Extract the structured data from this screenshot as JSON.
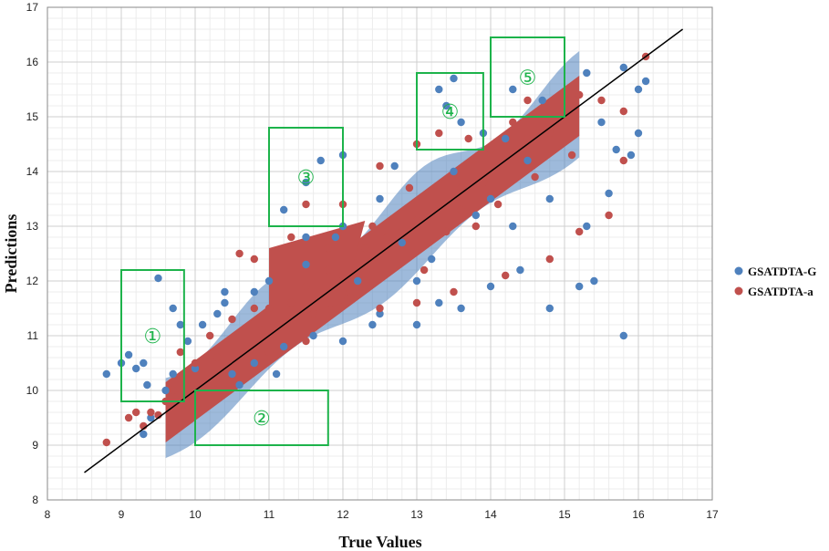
{
  "chart_data": {
    "type": "scatter",
    "title": "",
    "xlabel": "True Values",
    "ylabel": "Predictions",
    "xlim": [
      8,
      17
    ],
    "ylim": [
      8,
      17
    ],
    "xticks": [
      "8",
      "9",
      "10",
      "11",
      "12",
      "13",
      "14",
      "15",
      "16",
      "17"
    ],
    "yticks": [
      "8",
      "9",
      "10",
      "11",
      "12",
      "13",
      "14",
      "15",
      "16",
      "17"
    ],
    "grid": true,
    "legend_position": "right",
    "reference_line": {
      "x": [
        8.5,
        16.6
      ],
      "y": [
        8.5,
        16.6
      ],
      "color": "#000000"
    },
    "series": [
      {
        "name": "GSATDTA-G",
        "color": "#4f81bd",
        "points": [
          [
            8.8,
            10.3
          ],
          [
            9.0,
            10.5
          ],
          [
            9.1,
            10.65
          ],
          [
            9.2,
            10.4
          ],
          [
            9.3,
            10.5
          ],
          [
            9.35,
            10.1
          ],
          [
            9.5,
            12.05
          ],
          [
            9.7,
            11.5
          ],
          [
            9.8,
            11.2
          ],
          [
            9.9,
            10.9
          ],
          [
            9.3,
            9.2
          ],
          [
            9.4,
            9.5
          ],
          [
            9.6,
            10.0
          ],
          [
            9.7,
            10.3
          ],
          [
            10.0,
            10.4
          ],
          [
            10.1,
            11.2
          ],
          [
            10.3,
            11.4
          ],
          [
            10.4,
            11.8
          ],
          [
            10.4,
            11.6
          ],
          [
            10.8,
            11.8
          ],
          [
            10.5,
            10.3
          ],
          [
            10.8,
            10.5
          ],
          [
            11.1,
            10.3
          ],
          [
            11.2,
            10.8
          ],
          [
            11.6,
            11.0
          ],
          [
            12.0,
            10.9
          ],
          [
            12.4,
            11.2
          ],
          [
            12.5,
            11.4
          ],
          [
            13.0,
            11.2
          ],
          [
            13.3,
            11.6
          ],
          [
            13.6,
            11.5
          ],
          [
            14.0,
            11.9
          ],
          [
            14.4,
            12.2
          ],
          [
            14.8,
            11.5
          ],
          [
            15.2,
            11.9
          ],
          [
            15.4,
            12.0
          ],
          [
            15.8,
            11.0
          ],
          [
            11.7,
            14.2
          ],
          [
            12.0,
            14.3
          ],
          [
            11.5,
            13.8
          ],
          [
            11.2,
            13.3
          ],
          [
            11.5,
            12.8
          ],
          [
            13.3,
            15.5
          ],
          [
            13.5,
            15.7
          ],
          [
            13.4,
            15.2
          ],
          [
            13.6,
            14.9
          ],
          [
            13.9,
            14.7
          ],
          [
            14.3,
            15.5
          ],
          [
            14.7,
            15.3
          ],
          [
            15.0,
            15.1
          ],
          [
            15.3,
            15.8
          ],
          [
            15.8,
            15.9
          ],
          [
            16.0,
            15.5
          ],
          [
            16.1,
            15.65
          ],
          [
            15.5,
            14.9
          ],
          [
            15.7,
            14.4
          ],
          [
            15.9,
            14.3
          ],
          [
            16.0,
            14.7
          ],
          [
            15.3,
            13.0
          ],
          [
            15.6,
            13.6
          ],
          [
            14.8,
            13.5
          ],
          [
            14.3,
            13.0
          ],
          [
            12.0,
            13.0
          ],
          [
            12.5,
            13.5
          ],
          [
            13.0,
            12.0
          ],
          [
            13.5,
            14.0
          ],
          [
            14.0,
            13.5
          ],
          [
            11.0,
            12.0
          ],
          [
            11.5,
            12.3
          ],
          [
            12.2,
            12.0
          ],
          [
            12.8,
            12.7
          ],
          [
            13.8,
            13.2
          ],
          [
            14.5,
            14.2
          ],
          [
            10.6,
            10.1
          ],
          [
            11.9,
            12.8
          ],
          [
            12.7,
            14.1
          ],
          [
            13.2,
            12.4
          ],
          [
            14.2,
            14.6
          ]
        ]
      },
      {
        "name": "GSATDTA-a",
        "color": "#c0504d",
        "points": [
          [
            8.8,
            9.05
          ],
          [
            9.1,
            9.5
          ],
          [
            9.2,
            9.6
          ],
          [
            9.4,
            9.6
          ],
          [
            9.5,
            9.55
          ],
          [
            9.3,
            9.35
          ],
          [
            9.6,
            9.8
          ],
          [
            9.7,
            10.0
          ],
          [
            9.8,
            10.7
          ],
          [
            9.9,
            10.2
          ],
          [
            10.0,
            10.5
          ],
          [
            10.2,
            11.0
          ],
          [
            10.5,
            11.3
          ],
          [
            10.8,
            11.5
          ],
          [
            11.0,
            11.5
          ],
          [
            11.3,
            11.6
          ],
          [
            11.5,
            11.9
          ],
          [
            11.8,
            12.2
          ],
          [
            12.0,
            12.1
          ],
          [
            12.3,
            12.6
          ],
          [
            12.5,
            12.5
          ],
          [
            12.8,
            12.9
          ],
          [
            13.0,
            13.1
          ],
          [
            13.3,
            13.4
          ],
          [
            13.6,
            13.7
          ],
          [
            13.9,
            13.8
          ],
          [
            14.2,
            14.3
          ],
          [
            14.5,
            14.6
          ],
          [
            14.8,
            14.7
          ],
          [
            15.0,
            15.1
          ],
          [
            15.2,
            15.4
          ],
          [
            15.5,
            15.3
          ],
          [
            15.8,
            15.1
          ],
          [
            16.1,
            16.1
          ],
          [
            15.8,
            14.2
          ],
          [
            15.6,
            13.2
          ],
          [
            15.2,
            12.9
          ],
          [
            14.8,
            12.4
          ],
          [
            14.2,
            12.1
          ],
          [
            13.5,
            11.8
          ],
          [
            13.0,
            11.6
          ],
          [
            12.5,
            11.5
          ],
          [
            11.5,
            10.9
          ],
          [
            11.0,
            10.7
          ],
          [
            11.5,
            13.4
          ],
          [
            12.0,
            13.4
          ],
          [
            12.5,
            14.1
          ],
          [
            13.0,
            14.5
          ],
          [
            13.3,
            14.7
          ],
          [
            13.7,
            14.6
          ],
          [
            14.5,
            15.3
          ],
          [
            14.8,
            15.1
          ],
          [
            14.3,
            14.9
          ],
          [
            11.3,
            12.8
          ],
          [
            10.8,
            12.4
          ],
          [
            10.6,
            12.5
          ],
          [
            12.6,
            12.8
          ],
          [
            13.1,
            12.2
          ],
          [
            13.8,
            13.0
          ],
          [
            14.0,
            14.4
          ],
          [
            11.8,
            12.6
          ],
          [
            12.1,
            11.7
          ],
          [
            12.9,
            13.7
          ],
          [
            13.4,
            12.9
          ],
          [
            14.6,
            13.9
          ],
          [
            15.1,
            14.3
          ],
          [
            10.3,
            10.6
          ],
          [
            10.9,
            11.1
          ],
          [
            11.6,
            11.4
          ],
          [
            12.4,
            13.0
          ],
          [
            13.6,
            13.3
          ],
          [
            14.1,
            13.4
          ]
        ]
      }
    ],
    "annotations": [
      {
        "label": "①",
        "x_range": [
          9.0,
          9.85
        ],
        "y_range": [
          9.8,
          12.2
        ]
      },
      {
        "label": "②",
        "x_range": [
          10.0,
          11.8
        ],
        "y_range": [
          9.0,
          10.0
        ]
      },
      {
        "label": "③",
        "x_range": [
          11.0,
          12.0
        ],
        "y_range": [
          13.0,
          14.8
        ]
      },
      {
        "label": "④",
        "x_range": [
          13.0,
          13.9
        ],
        "y_range": [
          14.4,
          15.8
        ]
      },
      {
        "label": "⑤",
        "x_range": [
          14.0,
          15.0
        ],
        "y_range": [
          15.0,
          16.45
        ]
      }
    ]
  }
}
